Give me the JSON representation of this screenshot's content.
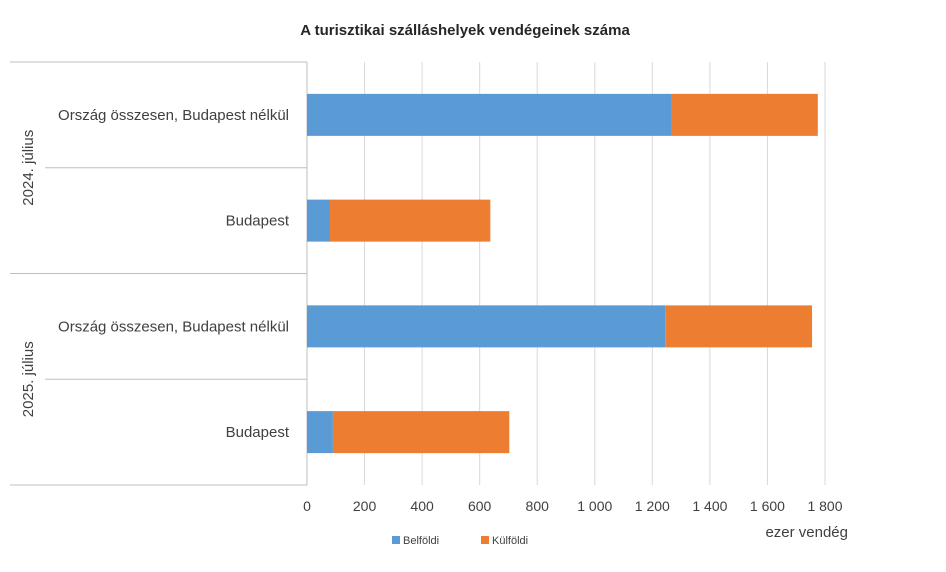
{
  "chart_data": {
    "type": "bar",
    "orientation": "horizontal",
    "stacked": true,
    "title": "A turisztikai szálláshelyek vendégeinek száma",
    "xlabel": "ezer vendég",
    "xlim": [
      0,
      1800
    ],
    "xticks": [
      0,
      200,
      400,
      600,
      800,
      1000,
      1200,
      1400,
      1600,
      1800
    ],
    "xtick_labels": [
      "0",
      "200",
      "400",
      "600",
      "800",
      "1 000",
      "1 200",
      "1 400",
      "1 600",
      "1 800"
    ],
    "groups": [
      {
        "label": "2024. július",
        "categories": [
          "Ország összesen, Budapest nélkül",
          "Budapest"
        ]
      },
      {
        "label": "2025. július",
        "categories": [
          "Ország összesen, Budapest nélkül",
          "Budapest"
        ]
      }
    ],
    "categories": [
      "Ország összesen, Budapest nélkül",
      "Budapest",
      "Ország összesen, Budapest nélkül",
      "Budapest"
    ],
    "series": [
      {
        "name": "Belföldi",
        "color": "#5b9bd5",
        "values": [
          1268,
          80,
          1245,
          90
        ]
      },
      {
        "name": "Külföldi",
        "color": "#ed7d31",
        "values": [
          507,
          557,
          510,
          613
        ]
      }
    ],
    "grid": true,
    "legend": "bottom"
  }
}
